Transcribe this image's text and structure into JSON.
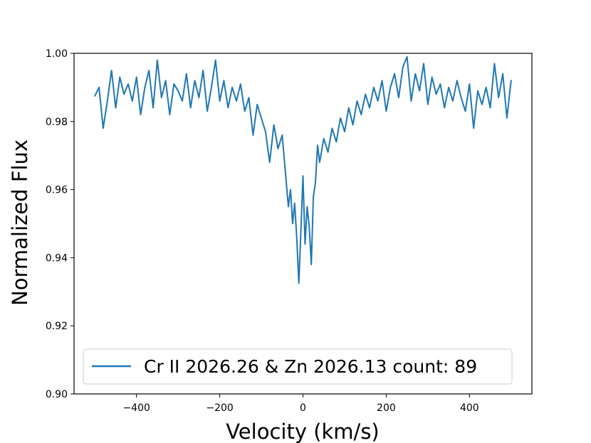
{
  "chart_data": {
    "type": "line",
    "title": "",
    "xlabel": "Velocity (km/s)",
    "ylabel": "Normalized Flux",
    "xlim": [
      -550,
      550
    ],
    "ylim": [
      0.9,
      1.0
    ],
    "xticks": [
      -400,
      -200,
      0,
      200,
      400
    ],
    "xtick_labels": [
      "−400",
      "−200",
      "0",
      "200",
      "400"
    ],
    "yticks": [
      0.9,
      0.92,
      0.94,
      0.96,
      0.98,
      1.0
    ],
    "ytick_labels": [
      "0.90",
      "0.92",
      "0.94",
      "0.96",
      "0.98",
      "1.00"
    ],
    "grid": false,
    "legend_position": "lower-center",
    "series": [
      {
        "name": "Cr II 2026.26 & Zn 2026.13 count: 89",
        "color": "#1f77b4",
        "x": [
          -500,
          -490,
          -480,
          -470,
          -460,
          -450,
          -440,
          -430,
          -420,
          -410,
          -400,
          -390,
          -380,
          -370,
          -360,
          -350,
          -340,
          -330,
          -320,
          -310,
          -300,
          -290,
          -280,
          -270,
          -260,
          -250,
          -240,
          -230,
          -220,
          -210,
          -200,
          -190,
          -180,
          -170,
          -160,
          -150,
          -140,
          -130,
          -120,
          -110,
          -100,
          -90,
          -80,
          -70,
          -60,
          -50,
          -40,
          -35,
          -30,
          -25,
          -20,
          -15,
          -10,
          -5,
          0,
          5,
          10,
          15,
          20,
          25,
          30,
          35,
          40,
          50,
          60,
          70,
          80,
          90,
          100,
          110,
          120,
          130,
          140,
          150,
          160,
          170,
          180,
          190,
          200,
          210,
          220,
          230,
          240,
          250,
          260,
          270,
          280,
          290,
          300,
          310,
          320,
          330,
          340,
          350,
          360,
          370,
          380,
          390,
          400,
          410,
          420,
          430,
          440,
          450,
          460,
          470,
          480,
          490,
          500
        ],
        "y": [
          0.9875,
          0.99,
          0.978,
          0.986,
          0.995,
          0.984,
          0.993,
          0.988,
          0.991,
          0.986,
          0.993,
          0.982,
          0.99,
          0.995,
          0.984,
          0.998,
          0.987,
          0.992,
          0.982,
          0.991,
          0.989,
          0.986,
          0.994,
          0.984,
          0.992,
          0.987,
          0.995,
          0.983,
          0.99,
          0.998,
          0.986,
          0.992,
          0.984,
          0.99,
          0.986,
          0.991,
          0.983,
          0.987,
          0.976,
          0.985,
          0.981,
          0.977,
          0.968,
          0.979,
          0.972,
          0.976,
          0.962,
          0.955,
          0.96,
          0.95,
          0.956,
          0.946,
          0.9325,
          0.948,
          0.964,
          0.944,
          0.955,
          0.949,
          0.938,
          0.958,
          0.962,
          0.973,
          0.968,
          0.975,
          0.971,
          0.978,
          0.974,
          0.981,
          0.977,
          0.984,
          0.979,
          0.986,
          0.982,
          0.988,
          0.984,
          0.99,
          0.986,
          0.992,
          0.983,
          0.99,
          0.994,
          0.987,
          0.996,
          0.999,
          0.986,
          0.994,
          0.989,
          0.997,
          0.985,
          0.993,
          0.988,
          0.991,
          0.984,
          0.99,
          0.986,
          0.992,
          0.987,
          0.983,
          0.991,
          0.978,
          0.989,
          0.985,
          0.99,
          0.984,
          0.997,
          0.987,
          0.994,
          0.981,
          0.992
        ]
      }
    ]
  }
}
